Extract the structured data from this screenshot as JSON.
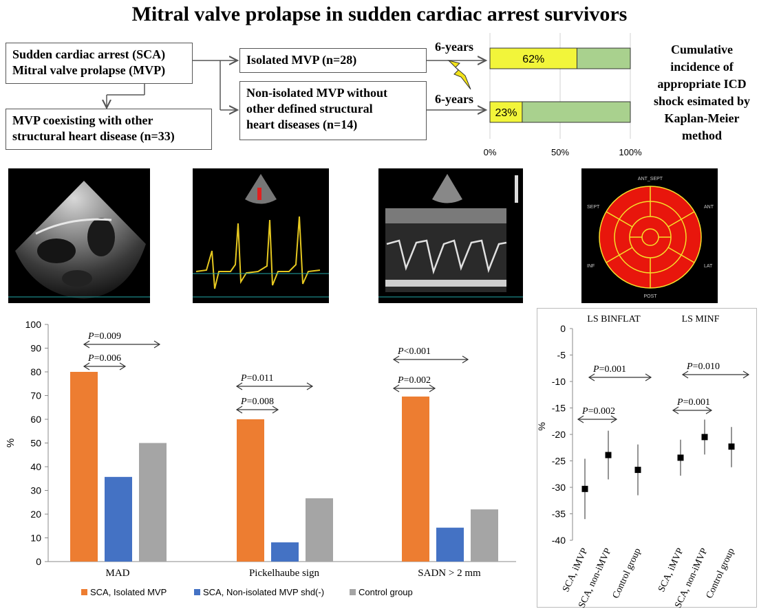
{
  "page": {
    "title": "Mitral valve prolapse in sudden cardiac arrest survivors"
  },
  "flow": {
    "box_main_line1": "Sudden cardiac arrest (SCA)",
    "box_main_line2": "Mitral valve prolapse (MVP)",
    "box_coexist_line1": "MVP coexisting with other",
    "box_coexist_line2": "structural heart disease (n=33)",
    "box_isolated": "Isolated MVP (n=28)",
    "box_nonisolated_line1": "Non-isolated MVP without",
    "box_nonisolated_line2": "other defined structural",
    "box_nonisolated_line3": "heart diseases (n=14)",
    "years_top": "6-years",
    "years_bottom": "6-years"
  },
  "incidence_note": {
    "line1": "Cumulative",
    "line2": "incidence of",
    "line3": "appropriate ICD",
    "line4": "shock esimated by",
    "line5": "Kaplan-Meier",
    "line6": "method"
  },
  "colors": {
    "orange": "#ED7D31",
    "blue": "#4472C4",
    "gray": "#A5A5A5",
    "yellow": "#F2F53A",
    "green": "#A9D18E",
    "red": "#E8160C"
  },
  "bullseye": {
    "top": "ANT_SEPT",
    "left": "SEPT",
    "right": "ANT",
    "left_low": "INF",
    "right_low": "LAT",
    "bottom": "POST"
  },
  "chart_data": [
    {
      "type": "bar",
      "orientation": "horizontal-stacked",
      "title": "Cumulative incidence of appropriate ICD shock",
      "categories": [
        "Isolated MVP (n=28)",
        "Non-isolated MVP without other defined structural heart diseases (n=14)"
      ],
      "values": [
        62,
        23
      ],
      "value_labels": [
        "62%",
        "23%"
      ],
      "xlim": [
        0,
        100
      ],
      "xticks": [
        "0%",
        "50%",
        "100%"
      ]
    },
    {
      "type": "bar",
      "categories": [
        "MAD",
        "Pickelhaube sign",
        "SADN > 2 mm"
      ],
      "series": [
        {
          "name": "SCA, Isolated MVP",
          "values": [
            80,
            60,
            69.6
          ]
        },
        {
          "name": "SCA, Non-isolated MVP shd(-)",
          "values": [
            35.7,
            8.1,
            14.3
          ]
        },
        {
          "name": "Control group",
          "values": [
            50,
            26.7,
            22
          ]
        }
      ],
      "ylabel": "%",
      "ylim": [
        0,
        100
      ],
      "yticks": [
        "0",
        "10",
        "20",
        "30",
        "40",
        "50",
        "60",
        "70",
        "80",
        "90",
        "100"
      ],
      "annotations": [
        {
          "p": "P",
          "text": "=0.006"
        },
        {
          "p": "P",
          "text": "=0.009"
        },
        {
          "p": "P",
          "text": "=0.008"
        },
        {
          "p": "P",
          "text": "=0.011"
        },
        {
          "p": "P",
          "text": "=0.002"
        },
        {
          "p": "P",
          "text": "<0.001"
        }
      ]
    },
    {
      "type": "scatter",
      "title": "",
      "groups": [
        "LS BINFLAT",
        "LS MINF"
      ],
      "categories": [
        "SCA, iMVP",
        "SCA, non-iMVP",
        "Control group",
        "SCA, iMVP",
        "SCA, non-iMVP",
        "Control group"
      ],
      "means": [
        -30.3,
        -23.9,
        -26.7,
        -24.4,
        -20.5,
        -22.3
      ],
      "lower": [
        -36,
        -28.5,
        -31.5,
        -27.8,
        -23.8,
        -26.2
      ],
      "upper": [
        -24.6,
        -19.3,
        -21.9,
        -21,
        -17.2,
        -18.6
      ],
      "ylabel": "%",
      "ylim": [
        -40,
        0
      ],
      "yticks": [
        "0",
        "-5",
        "-10",
        "-15",
        "-20",
        "-25",
        "-30",
        "-35",
        "-40"
      ],
      "annotations": [
        {
          "p": "P",
          "text": "=0.002"
        },
        {
          "p": "P",
          "text": "=0.001"
        },
        {
          "p": "P",
          "text": "=0.001"
        },
        {
          "p": "P",
          "text": "=0.010"
        }
      ]
    }
  ]
}
